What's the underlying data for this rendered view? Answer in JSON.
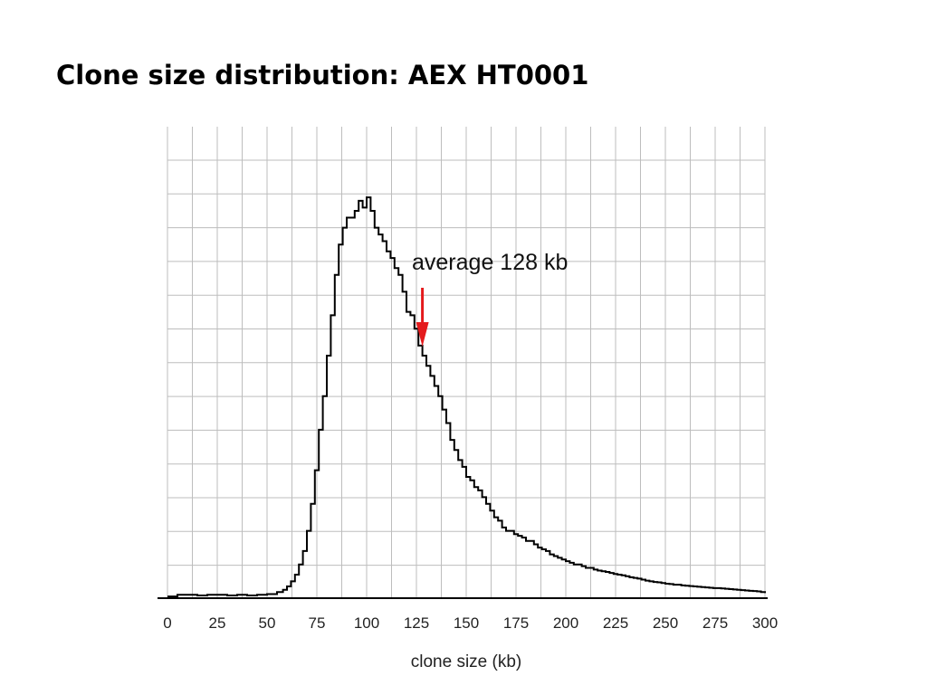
{
  "title": "Clone size distribution: AEX HT0001",
  "colors": {
    "line": "#000000",
    "grid": "#bdbdbd",
    "arrow": "#e41a1c",
    "axis": "#000000"
  },
  "chart_data": {
    "type": "line",
    "xlabel": "clone size (kb)",
    "ylabel": "",
    "xlim": [
      0,
      300
    ],
    "ylim": [
      0,
      14
    ],
    "xticks": [
      0,
      25,
      50,
      75,
      100,
      125,
      150,
      175,
      200,
      225,
      250,
      275,
      300
    ],
    "xtick_labels": [
      "0",
      "25",
      "50",
      "75",
      "100",
      "125",
      "150",
      "175",
      "200",
      "225",
      "250",
      "275",
      "300"
    ],
    "y_tick_labels_shown": false,
    "grid": true,
    "annotation": {
      "text": "average 128 kb",
      "x": 128,
      "arrow": true
    },
    "series": [
      {
        "x": [
          0,
          5,
          10,
          15,
          20,
          25,
          30,
          35,
          40,
          45,
          50,
          55,
          58,
          60,
          62,
          64,
          66,
          68,
          70,
          72,
          74,
          76,
          78,
          80,
          82,
          84,
          86,
          88,
          90,
          92,
          94,
          96,
          98,
          100,
          102,
          104,
          106,
          108,
          110,
          112,
          114,
          116,
          118,
          120,
          122,
          124,
          126,
          128,
          130,
          132,
          134,
          136,
          138,
          140,
          142,
          144,
          146,
          148,
          150,
          152,
          154,
          156,
          158,
          160,
          162,
          164,
          166,
          168,
          170,
          172,
          174,
          176,
          178,
          180,
          182,
          184,
          186,
          188,
          190,
          192,
          194,
          196,
          198,
          200,
          202,
          204,
          206,
          208,
          210,
          212,
          214,
          216,
          218,
          220,
          222,
          224,
          226,
          228,
          230,
          232,
          234,
          236,
          238,
          240,
          242,
          244,
          246,
          248,
          250,
          252,
          254,
          256,
          258,
          260,
          262,
          264,
          266,
          268,
          270,
          272,
          274,
          276,
          278,
          280,
          282,
          284,
          286,
          288,
          290,
          292,
          294,
          296,
          298,
          300
        ],
        "y": [
          0.05,
          0.1,
          0.1,
          0.08,
          0.1,
          0.1,
          0.08,
          0.1,
          0.08,
          0.1,
          0.12,
          0.18,
          0.25,
          0.35,
          0.5,
          0.7,
          1.0,
          1.4,
          2.0,
          2.8,
          3.8,
          5.0,
          6.0,
          7.2,
          8.4,
          9.6,
          10.5,
          11.0,
          11.3,
          11.3,
          11.5,
          11.8,
          11.6,
          11.9,
          11.5,
          11.0,
          10.8,
          10.6,
          10.3,
          10.1,
          9.8,
          9.6,
          9.1,
          8.5,
          8.4,
          8.0,
          7.5,
          7.2,
          6.9,
          6.6,
          6.3,
          6.0,
          5.6,
          5.2,
          4.7,
          4.4,
          4.1,
          3.9,
          3.6,
          3.5,
          3.3,
          3.2,
          3.0,
          2.8,
          2.6,
          2.4,
          2.3,
          2.1,
          2.0,
          2.0,
          1.9,
          1.85,
          1.8,
          1.7,
          1.7,
          1.6,
          1.5,
          1.45,
          1.4,
          1.3,
          1.25,
          1.2,
          1.15,
          1.1,
          1.05,
          1.0,
          1.0,
          0.95,
          0.9,
          0.9,
          0.85,
          0.82,
          0.8,
          0.78,
          0.75,
          0.72,
          0.7,
          0.68,
          0.65,
          0.62,
          0.6,
          0.58,
          0.55,
          0.52,
          0.5,
          0.48,
          0.47,
          0.45,
          0.43,
          0.42,
          0.4,
          0.4,
          0.38,
          0.37,
          0.36,
          0.35,
          0.34,
          0.33,
          0.32,
          0.31,
          0.3,
          0.3,
          0.29,
          0.28,
          0.27,
          0.26,
          0.25,
          0.24,
          0.23,
          0.22,
          0.21,
          0.2,
          0.18,
          0.15
        ]
      }
    ]
  }
}
